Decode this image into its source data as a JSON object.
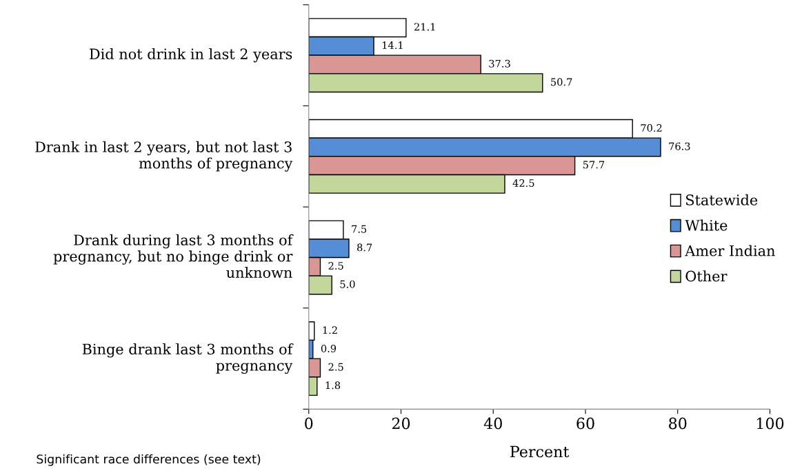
{
  "chart_data": {
    "type": "bar",
    "orientation": "horizontal",
    "xlabel": "Percent",
    "categories": [
      "Did not drink in last 2 years",
      "Drank in last 2 years, but not last 3 months of pregnancy",
      "Drank during last 3 months of pregnancy, but no binge drink or unknown",
      "Binge drank last 3 months of pregnancy"
    ],
    "series": [
      {
        "name": "Statewide",
        "color": "#ffffff",
        "values": [
          21.1,
          70.2,
          7.5,
          1.2
        ],
        "value_labels": [
          "21.1",
          "70.2",
          "7.5",
          "1.2"
        ]
      },
      {
        "name": "White",
        "color": "#558ed5",
        "values": [
          14.1,
          76.3,
          8.7,
          0.9
        ],
        "value_labels": [
          "14.1",
          "76.3",
          "8.7",
          "0.9"
        ]
      },
      {
        "name": "Amer Indian",
        "color": "#d99694",
        "values": [
          37.3,
          57.7,
          2.5,
          2.5
        ],
        "value_labels": [
          "37.3",
          "57.7",
          "2.5",
          "2.5"
        ]
      },
      {
        "name": "Other",
        "color": "#c3d69b",
        "values": [
          50.7,
          42.5,
          5.0,
          1.8
        ],
        "value_labels": [
          "50.7",
          "42.5",
          "5.0",
          "1.8"
        ]
      }
    ],
    "xlim": [
      0,
      100
    ],
    "xticks": [
      0,
      20,
      40,
      60,
      80,
      100
    ],
    "legend": "right",
    "grid": false,
    "annotations": [
      "Significant race differences (see text)"
    ]
  }
}
